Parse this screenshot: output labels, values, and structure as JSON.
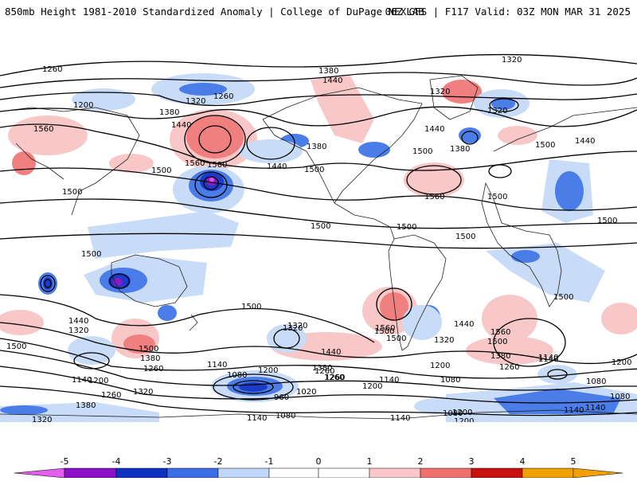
{
  "header": {
    "title": "850mb Height 1981-2010 Standardized Anomaly | College of DuPage NEXLAB",
    "run_info": "06Z GFS | F117 Valid: 03Z MON MAR 31 2025"
  },
  "map": {
    "contour_labels": [
      "1260",
      "1200",
      "1320",
      "1260",
      "1380",
      "1440",
      "1380",
      "1440",
      "1320",
      "1320",
      "1380",
      "1440",
      "1560",
      "1500",
      "1500",
      "1560",
      "1500",
      "1500",
      "1440",
      "1500",
      "1380",
      "1500",
      "1500",
      "1560",
      "1500",
      "1500",
      "1440",
      "1500",
      "1500",
      "1500",
      "1500",
      "1500",
      "1500",
      "1440",
      "1320",
      "1500",
      "1500",
      "1380",
      "1260",
      "1320",
      "1140",
      "1200",
      "1260",
      "1320",
      "1380",
      "1320",
      "1140",
      "1080",
      "1200",
      "960",
      "1020",
      "1080",
      "1140",
      "1200",
      "1260",
      "1440",
      "1380",
      "1260",
      "1140",
      "1560",
      "1500",
      "1320",
      "1200",
      "1080",
      "1140",
      "1080",
      "1200",
      "1140",
      "1080",
      "1140",
      "1440",
      "1500",
      "1560",
      "1380",
      "1260",
      "1320",
      "1140",
      "1200",
      "1080",
      "1200",
      "1140",
      "1200",
      "1320",
      "1260"
    ],
    "anomaly_colors": {
      "neg5": "#e050e8",
      "neg4": "#8a1ac8",
      "neg3": "#1c3cc8",
      "neg2": "#4a7de8",
      "neg1": "#c8dcf8",
      "pos1": "#f8c8c8",
      "pos2": "#f08080",
      "pos3": "#c81c1c",
      "pos4": "#a00000",
      "pos5": "#f0a000"
    }
  },
  "colorbar": {
    "tick_labels": [
      "-5",
      "-4",
      "-3",
      "-2",
      "-1",
      "0",
      "1",
      "2",
      "3",
      "4",
      "5"
    ],
    "colors": [
      "#e060ec",
      "#8c10c8",
      "#1030c0",
      "#3c6ee6",
      "#c0d8fa",
      "#ffffff",
      "#fac8c8",
      "#f07070",
      "#c81010",
      "#f0a000",
      "#f0a000"
    ]
  }
}
